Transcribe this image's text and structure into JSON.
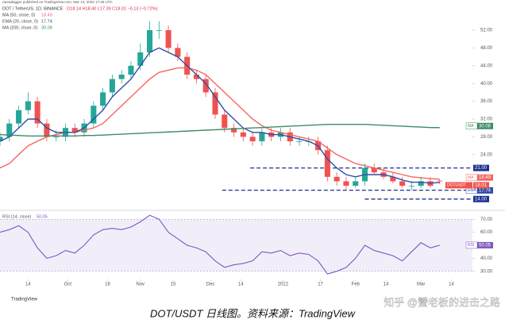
{
  "chart_data": {
    "type": "candlestick",
    "credit": "rareadagger published on TradingView.com, Mar 13, 2022 17:46 UTC",
    "symbol": "DOT / TetherUS, 1D, BINANCE",
    "ohlc_text": "O18.14 H18.40 L17.39 C18.01 −0.13 (−0.72%)",
    "candles": {
      "x": [
        0,
        4,
        8,
        12,
        16,
        20,
        24,
        28,
        32,
        36,
        40,
        44,
        48,
        52,
        56,
        60,
        64,
        68,
        72,
        76,
        80,
        84,
        88,
        92,
        96,
        100,
        104,
        108,
        112,
        116,
        120,
        124,
        128,
        132,
        136,
        140,
        144,
        148,
        152,
        156,
        160,
        164,
        168,
        172,
        176,
        180,
        184,
        188
      ],
      "open": [
        27,
        28,
        31,
        34,
        36,
        31,
        28,
        28,
        30,
        29,
        31,
        35,
        38,
        41,
        42,
        44,
        47,
        52,
        52,
        48,
        46,
        42,
        41,
        38,
        33,
        30,
        29,
        28,
        27,
        29,
        28,
        29,
        27,
        27,
        27,
        25,
        19,
        18,
        17,
        18,
        21,
        20,
        19,
        18,
        17,
        17,
        18,
        18.14
      ],
      "high": [
        29,
        32,
        35,
        38,
        37,
        32,
        29.5,
        31,
        31,
        32,
        36,
        39,
        42,
        43,
        45,
        49,
        54,
        54,
        53,
        49,
        47,
        43,
        42,
        39,
        34,
        31,
        30,
        29,
        30,
        30,
        30,
        30,
        28,
        28,
        28,
        26,
        20,
        19,
        19,
        22,
        22,
        21,
        20,
        19,
        18,
        19,
        19,
        18.4
      ],
      "low": [
        26,
        27,
        30,
        33,
        30,
        27,
        27,
        27,
        28,
        28,
        30,
        34,
        37,
        40,
        41,
        43,
        46,
        50,
        47,
        45,
        41,
        40,
        37,
        32,
        29,
        28,
        27,
        26,
        26,
        27,
        27,
        26,
        26,
        26,
        24,
        18,
        17,
        16,
        16.5,
        17,
        19.5,
        18.5,
        17.5,
        16.5,
        16,
        16.5,
        16.5,
        17.39
      ],
      "close": [
        28,
        31,
        34,
        36,
        31,
        28,
        28,
        30,
        29,
        31,
        35,
        38,
        41,
        42,
        44,
        47,
        52,
        52,
        48,
        46,
        42,
        41,
        38,
        33,
        30,
        29,
        28,
        27,
        29,
        28,
        29,
        27,
        27,
        27,
        25,
        19,
        18,
        17,
        18,
        21,
        20,
        19,
        18,
        17,
        17,
        18,
        17,
        18.01
      ],
      "up_color": "#26a69a",
      "down_color": "#ef5350",
      "last_label": "18.01",
      "last_tag": "DOTUSDT"
    },
    "series": [
      {
        "name": "MA (50, close, 0)",
        "tag": "MA",
        "label": "18.49",
        "color": "#f2675f",
        "values": [
          21,
          22,
          24,
          26,
          27,
          28,
          28.5,
          29,
          29,
          29.5,
          30,
          31,
          33,
          35,
          37,
          39,
          41,
          42.5,
          43,
          43.5,
          43.5,
          43,
          42,
          40,
          38,
          36,
          34,
          32,
          30.5,
          29.5,
          29,
          28.5,
          28,
          27.5,
          27,
          25.5,
          24,
          23,
          22,
          21.5,
          21,
          20.5,
          20,
          19.5,
          19,
          18.8,
          18.6,
          18.49
        ]
      },
      {
        "name": "EMA (20, close, 0)",
        "tag": "EMA",
        "label": "17.74",
        "color": "#2f4da8",
        "values": [
          27,
          28,
          30,
          32,
          32,
          30,
          29,
          29,
          29,
          30,
          32,
          34,
          37,
          39,
          41,
          44,
          47,
          48,
          47,
          46,
          44,
          42,
          40,
          37,
          34,
          32,
          30,
          29,
          29,
          28.5,
          28.5,
          28,
          27.5,
          27,
          26,
          23,
          21,
          19.5,
          19,
          19.5,
          19.5,
          19.5,
          19,
          18.3,
          17.8,
          17.8,
          17.6,
          17.74
        ]
      },
      {
        "name": "MA (200, close, 0)",
        "tag": "MA",
        "label": "30.08",
        "color": "#3c8d62",
        "values": [
          28.5,
          28.4,
          28.3,
          28.2,
          28.2,
          28.2,
          28.2,
          28.2,
          28.2,
          28.3,
          28.3,
          28.4,
          28.5,
          28.6,
          28.7,
          28.8,
          28.9,
          29,
          29.1,
          29.2,
          29.3,
          29.4,
          29.5,
          29.6,
          29.7,
          29.8,
          29.9,
          30,
          30.1,
          30.2,
          30.3,
          30.4,
          30.5,
          30.6,
          30.7,
          30.8,
          30.8,
          30.8,
          30.8,
          30.8,
          30.7,
          30.6,
          30.5,
          30.4,
          30.3,
          30.2,
          30.1,
          30.08
        ]
      }
    ],
    "levels": [
      {
        "value": 21,
        "label": "21.00",
        "from": 107
      },
      {
        "value": 16,
        "label": "16.00",
        "from": 95
      },
      {
        "value": 14,
        "label": "14.00",
        "from": 156
      }
    ],
    "level_color": "#1f2f8f",
    "ylim": [
      12,
      57
    ],
    "yticks": [
      {
        "value": 52,
        "label": "52.00"
      },
      {
        "value": 48,
        "label": "48.00"
      },
      {
        "value": 44,
        "label": "44.00"
      },
      {
        "value": 40,
        "label": "40.00"
      },
      {
        "value": 36,
        "label": "36.00"
      },
      {
        "value": 32,
        "label": "32.00"
      },
      {
        "value": 28,
        "label": "28.00"
      },
      {
        "value": 24,
        "label": "24.00"
      }
    ],
    "xlim": [
      0,
      202
    ],
    "xticks": [
      {
        "value": 12,
        "label": "14"
      },
      {
        "value": 29,
        "label": "Oct"
      },
      {
        "value": 46,
        "label": "18"
      },
      {
        "value": 60,
        "label": "Nov"
      },
      {
        "value": 74,
        "label": "15"
      },
      {
        "value": 90,
        "label": "Dec"
      },
      {
        "value": 103,
        "label": "14"
      },
      {
        "value": 121,
        "label": "2022"
      },
      {
        "value": 137,
        "label": "17"
      },
      {
        "value": 152,
        "label": "Feb"
      },
      {
        "value": 165,
        "label": "14"
      },
      {
        "value": 180,
        "label": "Mar"
      },
      {
        "value": 193,
        "label": "14"
      }
    ],
    "rsi": {
      "name": "RSI (14, close)",
      "tag": "RSI",
      "label": "50.05",
      "color": "#7e57c2",
      "band": [
        30,
        70
      ],
      "values": [
        60,
        62,
        65,
        60,
        48,
        40,
        42,
        46,
        44,
        50,
        58,
        62,
        63,
        62,
        64,
        68,
        73,
        70,
        60,
        55,
        50,
        48,
        45,
        38,
        33,
        35,
        36,
        38,
        45,
        44,
        46,
        42,
        44,
        43,
        38,
        28,
        30,
        33,
        40,
        50,
        46,
        44,
        42,
        38,
        45,
        52,
        48,
        50.05
      ],
      "ylim": [
        25,
        75
      ],
      "yticks": [
        {
          "value": 70,
          "label": "70.00"
        },
        {
          "value": 60,
          "label": "60.00"
        },
        {
          "value": 40,
          "label": "40.00"
        },
        {
          "value": 30,
          "label": "30.00"
        }
      ]
    },
    "logo": "TradingView",
    "caption": "DOT/USDT 日线图。资料来源：TradingView",
    "watermark": "知乎 @蟹老板的进击之路"
  }
}
